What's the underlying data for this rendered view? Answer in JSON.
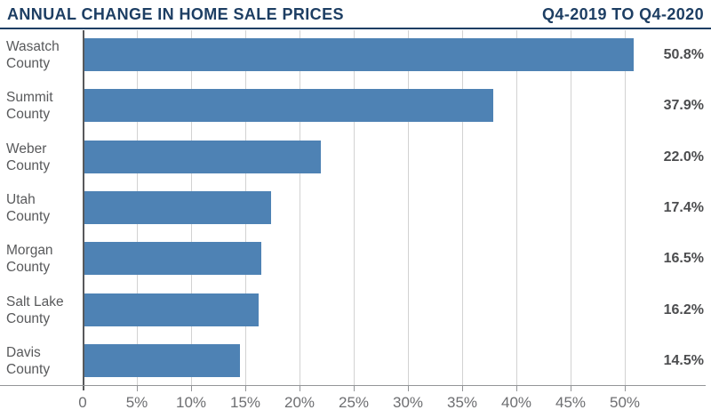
{
  "header": {
    "title": "ANNUAL CHANGE IN HOME SALE PRICES",
    "period": "Q4-2019 TO Q4-2020"
  },
  "chart_data": {
    "type": "bar",
    "orientation": "horizontal",
    "title": "ANNUAL CHANGE IN HOME SALE PRICES",
    "subtitle": "Q4-2019 TO Q4-2020",
    "categories": [
      "Wasatch County",
      "Summit County",
      "Weber County",
      "Utah County",
      "Morgan County",
      "Salt Lake County",
      "Davis County"
    ],
    "category_lines": [
      [
        "Wasatch",
        "County"
      ],
      [
        "Summit",
        "County"
      ],
      [
        "Weber",
        "County"
      ],
      [
        "Utah",
        "County"
      ],
      [
        "Morgan",
        "County"
      ],
      [
        "Salt Lake",
        "County"
      ],
      [
        "Davis",
        "County"
      ]
    ],
    "values": [
      50.8,
      37.9,
      22.0,
      17.4,
      16.5,
      16.2,
      14.5
    ],
    "value_labels": [
      "50.8%",
      "37.9%",
      "22.0%",
      "17.4%",
      "16.5%",
      "16.2%",
      "14.5%"
    ],
    "xlabel": "",
    "ylabel": "",
    "xlim": [
      0,
      57.5
    ],
    "x_ticks": [
      0,
      5,
      10,
      15,
      20,
      25,
      30,
      35,
      40,
      45,
      50
    ],
    "x_tick_labels": [
      "0",
      "5%",
      "10%",
      "15%",
      "20%",
      "25%",
      "30%",
      "35%",
      "40%",
      "45%",
      "50%"
    ],
    "grid": "vertical-only",
    "legend": "none",
    "colors": {
      "bar": "#4e82b4",
      "navy": "#1d3e63",
      "grid": "#d2d2d2",
      "axis": "#939598",
      "zero_axis": "#58595b",
      "category_label": "#58595b",
      "tick_label": "#6d6e71",
      "value_label": "#4c4d4f"
    }
  }
}
